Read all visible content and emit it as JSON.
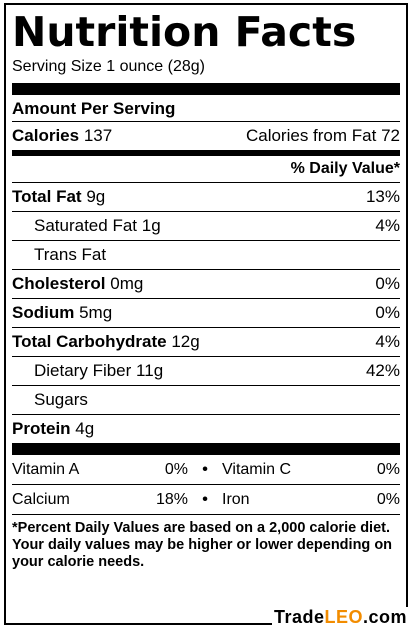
{
  "title": "Nutrition Facts",
  "serving_size": "Serving Size  1 ounce (28g)",
  "amount_per_serving": "Amount Per Serving",
  "calories": {
    "label": "Calories",
    "value": "137",
    "from_fat_label": "Calories from Fat",
    "from_fat_value": "72"
  },
  "daily_value_header": "% Daily Value*",
  "nutrients": [
    {
      "label": "Total Fat",
      "amount": "9g",
      "dv": "13%"
    },
    {
      "label": "Saturated Fat",
      "amount": "1g",
      "dv": "4%"
    },
    {
      "label": "Trans Fat",
      "amount": "",
      "dv": ""
    },
    {
      "label": "Cholesterol",
      "amount": "0mg",
      "dv": "0%"
    },
    {
      "label": "Sodium",
      "amount": "5mg",
      "dv": "0%"
    },
    {
      "label": "Total Carbohydrate",
      "amount": "12g",
      "dv": "4%"
    },
    {
      "label": "Dietary Fiber",
      "amount": "11g",
      "dv": "42%"
    },
    {
      "label": "Sugars",
      "amount": "",
      "dv": ""
    },
    {
      "label": "Protein",
      "amount": "4g",
      "dv": ""
    }
  ],
  "vitamins": [
    {
      "label": "Vitamin A",
      "dv": "0%"
    },
    {
      "label": "Vitamin C",
      "dv": "0%"
    },
    {
      "label": "Calcium",
      "dv": "18%"
    },
    {
      "label": "Iron",
      "dv": "0%"
    }
  ],
  "separator": "•",
  "footnote": "*Percent Daily Values are based on a 2,000 calorie diet. Your daily values may be higher or lower depending on your calorie needs.",
  "watermark": {
    "prefix": "Trade",
    "highlight": "LEO",
    "suffix": ".com"
  }
}
